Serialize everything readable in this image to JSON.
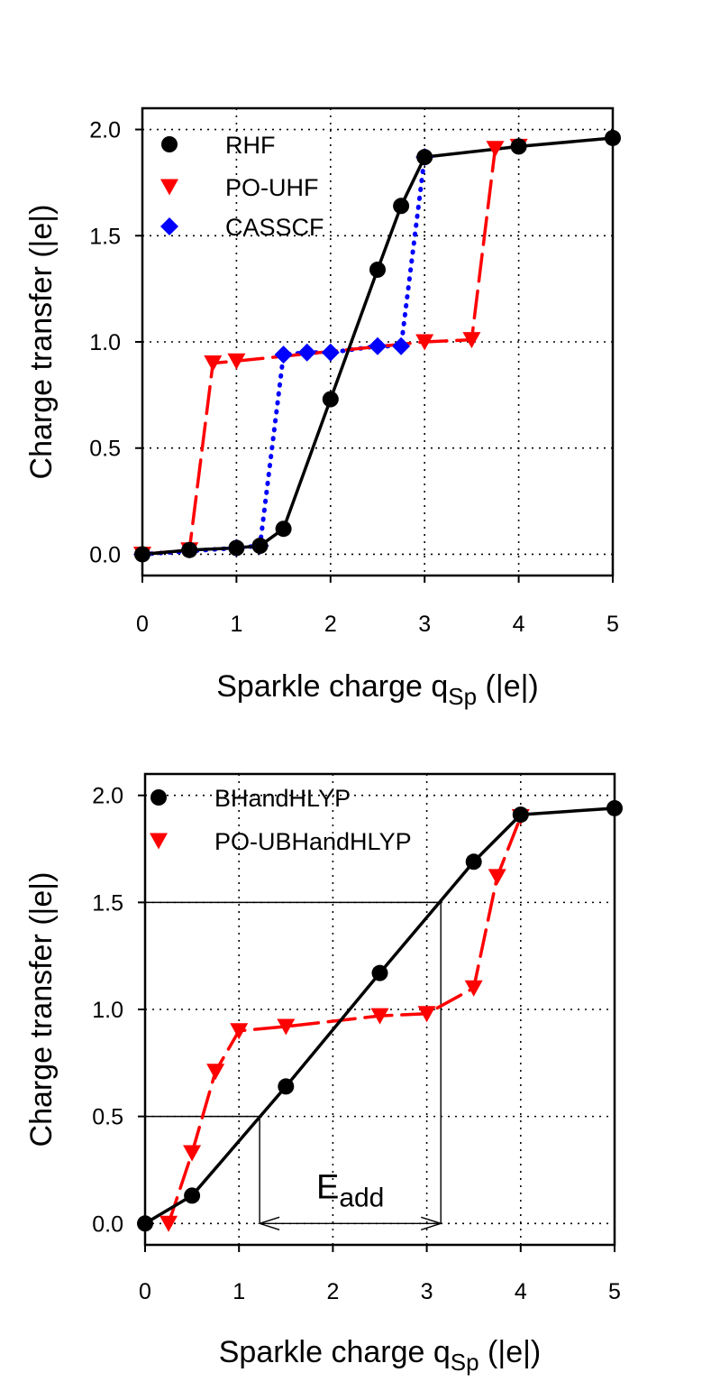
{
  "chart_data": [
    {
      "type": "line",
      "title": "",
      "xlabel": "Sparkle charge q",
      "xlabel_sub": "Sp",
      "xlabel_unit": " (|e|)",
      "ylabel": "Charge transfer (|e|)",
      "xlim": [
        0,
        5
      ],
      "ylim": [
        -0.1,
        2.1
      ],
      "xticks": [
        "0",
        "1",
        "2",
        "3",
        "4",
        "5"
      ],
      "yticks": [
        "0.0",
        "0.5",
        "1.0",
        "1.5",
        "2.0"
      ],
      "grid": true,
      "legend_position": "top-left",
      "series": [
        {
          "name": "RHF",
          "color": "#000000",
          "marker": "circle",
          "line": "solid",
          "x": [
            0,
            0.5,
            1.0,
            1.25,
            1.5,
            2.0,
            2.5,
            2.75,
            3.0,
            4.0,
            5.0
          ],
          "y": [
            0.0,
            0.02,
            0.03,
            0.04,
            0.12,
            0.73,
            1.34,
            1.64,
            1.87,
            1.92,
            1.96
          ]
        },
        {
          "name": "PO-UHF",
          "color": "#ff0000",
          "marker": "triangle-down",
          "line": "dashed",
          "x": [
            0,
            0.5,
            0.75,
            1.0,
            3.0,
            3.5,
            3.75,
            4.0
          ],
          "y": [
            0.0,
            0.02,
            0.9,
            0.91,
            1.0,
            1.01,
            1.91,
            1.92
          ]
        },
        {
          "name": "CASSCF",
          "color": "#0000ff",
          "marker": "diamond",
          "line": "dotted",
          "x": [
            0,
            1.0,
            1.25,
            1.5,
            1.75,
            2.0,
            2.5,
            2.75,
            3.0
          ],
          "y": [
            0.0,
            0.03,
            0.04,
            0.94,
            0.95,
            0.95,
            0.98,
            0.98,
            1.87
          ]
        }
      ]
    },
    {
      "type": "line",
      "title": "",
      "xlabel": "Sparkle charge q",
      "xlabel_sub": "Sp",
      "xlabel_unit": " (|e|)",
      "ylabel": "Charge transfer (|e|)",
      "xlim": [
        0,
        5
      ],
      "ylim": [
        -0.1,
        2.1
      ],
      "xticks": [
        "0",
        "1",
        "2",
        "3",
        "4",
        "5"
      ],
      "yticks": [
        "0.0",
        "0.5",
        "1.0",
        "1.5",
        "2.0"
      ],
      "grid": true,
      "legend_position": "top-left",
      "series": [
        {
          "name": "BHandHLYP",
          "color": "#000000",
          "marker": "circle",
          "line": "solid",
          "x": [
            0,
            0.5,
            1.5,
            2.5,
            3.5,
            4.0,
            5.0
          ],
          "y": [
            0.0,
            0.13,
            0.64,
            1.17,
            1.69,
            1.91,
            1.94
          ]
        },
        {
          "name": "PO-UBHandHLYP",
          "color": "#ff0000",
          "marker": "triangle-down",
          "line": "dashed",
          "x": [
            0.25,
            0.5,
            0.75,
            1.0,
            1.5,
            2.5,
            3.0,
            3.5,
            3.75,
            4.0
          ],
          "y": [
            0.0,
            0.33,
            0.71,
            0.9,
            0.92,
            0.97,
            0.98,
            1.1,
            1.62,
            1.9
          ]
        }
      ],
      "annotation": {
        "label": "E",
        "label_sub": "add",
        "x_start": 1.22,
        "x_end": 3.15,
        "y_start_level": 0.5,
        "y_end_level": 1.5
      }
    }
  ]
}
